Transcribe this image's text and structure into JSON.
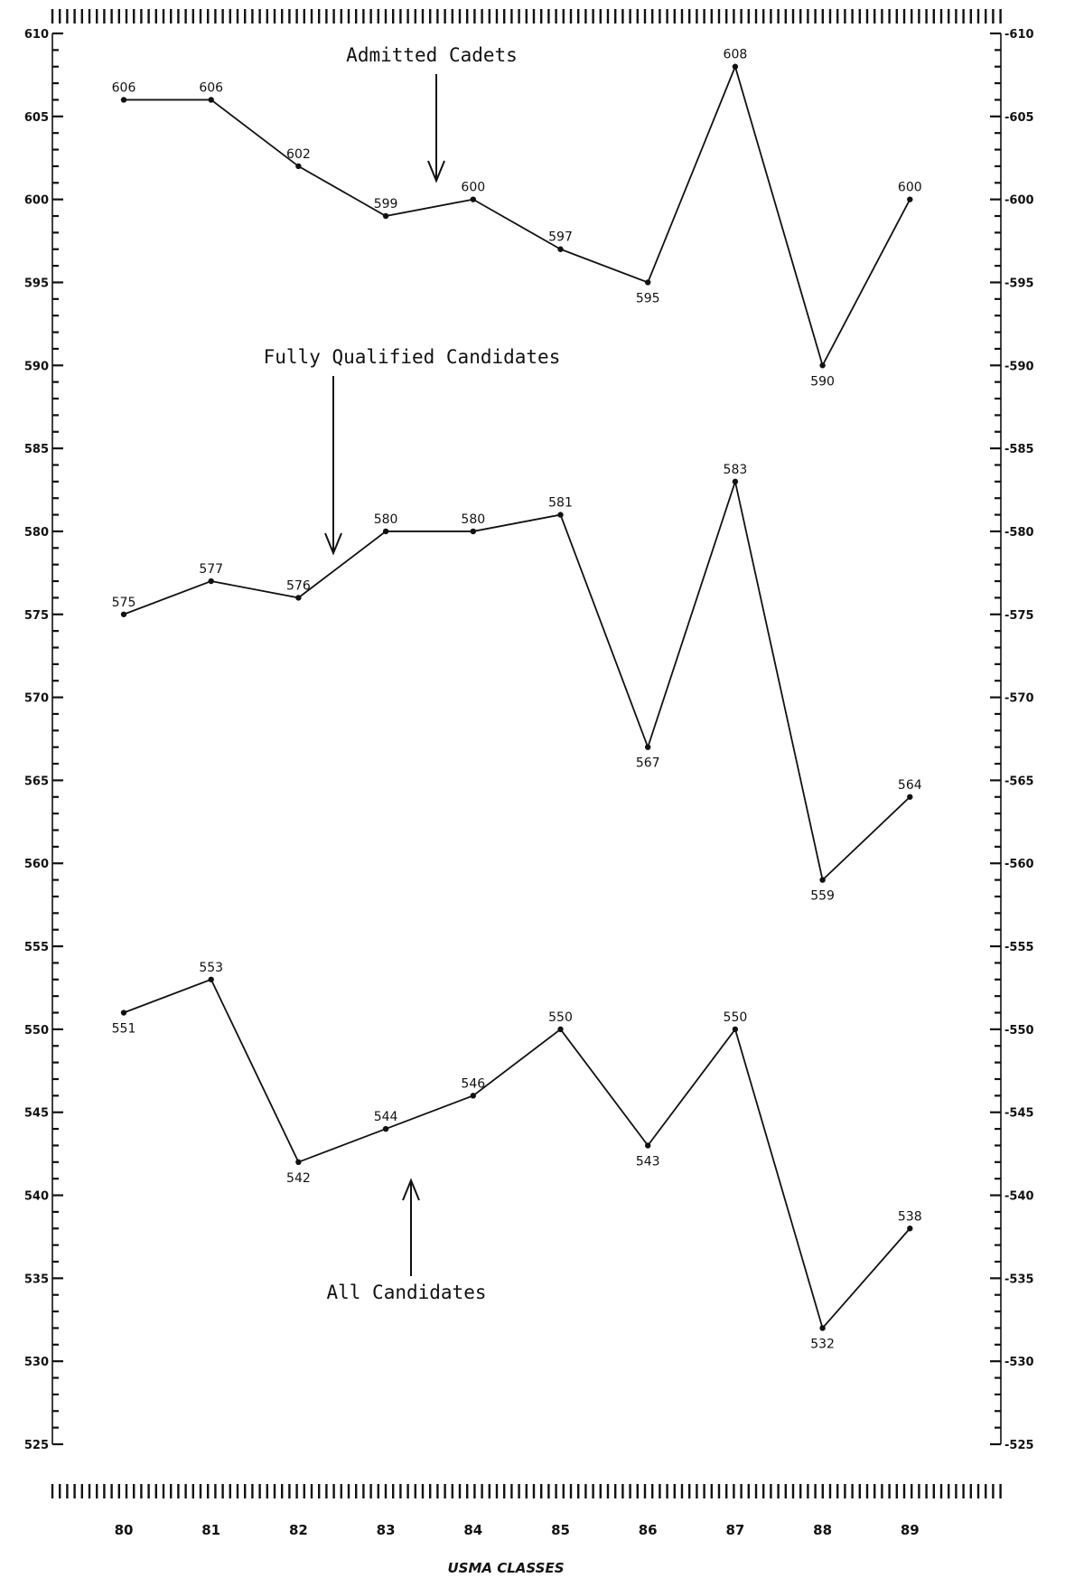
{
  "chart_data": {
    "type": "line",
    "title": "",
    "xlabel": "USMA CLASSES",
    "ylabel": "",
    "x": [
      "80",
      "81",
      "82",
      "83",
      "84",
      "85",
      "86",
      "87",
      "88",
      "89"
    ],
    "ylim": [
      525,
      610
    ],
    "y_ticks": [
      "610",
      "605",
      "600",
      "595",
      "590",
      "585",
      "580",
      "575",
      "570",
      "565",
      "560",
      "555",
      "550",
      "545",
      "540",
      "535",
      "530",
      "525"
    ],
    "grid": false,
    "legend": "none",
    "series": [
      {
        "name": "Admitted Cadets",
        "values": [
          606,
          606,
          602,
          599,
          600,
          597,
          595,
          608,
          590,
          600
        ],
        "labels": [
          "606",
          "606",
          "602",
          "599",
          "600",
          "597",
          "595",
          "608",
          "590",
          "600"
        ]
      },
      {
        "name": "Fully Qualified Candidates",
        "values": [
          575,
          577,
          576,
          580,
          580,
          581,
          567,
          583,
          559,
          564
        ],
        "labels": [
          "575",
          "577",
          "576",
          "580",
          "580",
          "581",
          "567",
          "583",
          "559",
          "564"
        ]
      },
      {
        "name": "All Candidates",
        "values": [
          551,
          553,
          542,
          544,
          546,
          550,
          543,
          550,
          532,
          538
        ],
        "labels": [
          "551",
          "553",
          "542",
          "544",
          "546",
          "550",
          "543",
          "550",
          "532",
          "538"
        ]
      }
    ],
    "annotations": [
      {
        "text": "Admitted Cadets",
        "series": 0,
        "arrow": "down"
      },
      {
        "text": "Fully Qualified Candidates",
        "series": 1,
        "arrow": "down"
      },
      {
        "text": "All Candidates",
        "series": 2,
        "arrow": "up"
      }
    ],
    "colors": {
      "line": "#111111",
      "background": "#ffffff"
    }
  }
}
